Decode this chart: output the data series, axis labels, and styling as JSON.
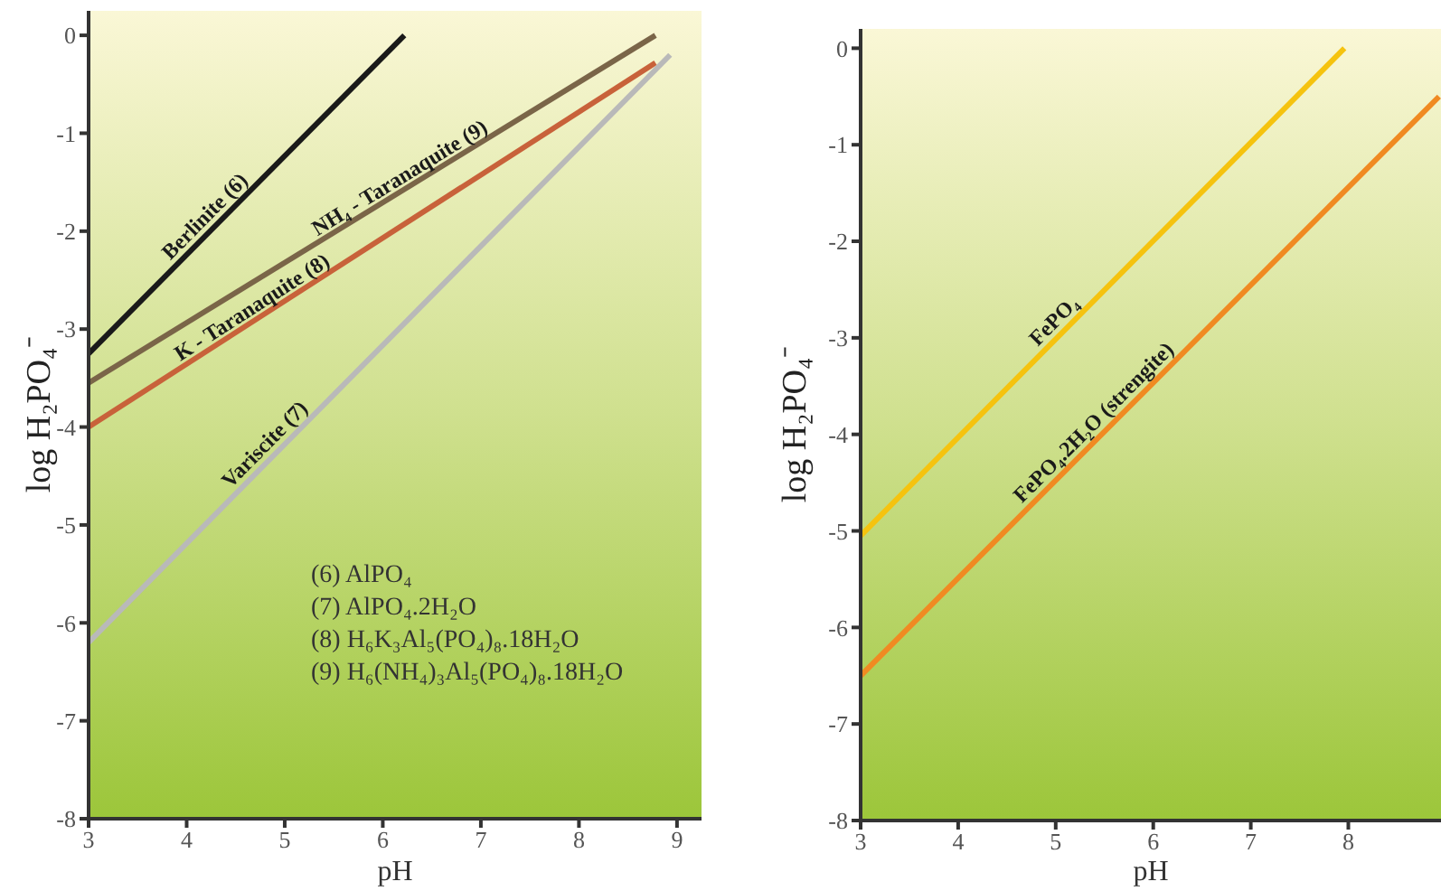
{
  "chart_data": [
    {
      "type": "line",
      "xlabel": "pH",
      "ylabel": "log H₂PO₄⁻",
      "xlim": [
        3,
        9.25
      ],
      "ylim": [
        -8,
        0.25
      ],
      "xticks": [
        3,
        4,
        5,
        6,
        7,
        8,
        9
      ],
      "yticks": [
        -8,
        -7,
        -6,
        -5,
        -4,
        -3,
        -2,
        -1,
        0
      ],
      "marker": "none",
      "line_style": "solid",
      "series": [
        {
          "name": "Berlinite (6)",
          "color": "#1a1a1a",
          "x": [
            3,
            6.22
          ],
          "values": [
            -3.25,
            0
          ]
        },
        {
          "name": "NH₄ - Taranaquite (9)",
          "color": "#7a6548",
          "x": [
            3,
            8.78
          ],
          "values": [
            -3.55,
            0
          ]
        },
        {
          "name": "K - Taranaquite (8)",
          "color": "#c8623a",
          "x": [
            3,
            8.78
          ],
          "values": [
            -4.0,
            -0.28
          ]
        },
        {
          "name": "Variscite (7)",
          "color": "#b9b9b9",
          "x": [
            3,
            8.93
          ],
          "values": [
            -6.2,
            -0.2
          ]
        }
      ],
      "annotations": [
        "(6) AlPO₄",
        "(7) AlPO₄.2H₂O",
        "(8) H₆K₃Al₅(PO₄)₈.18H₂O",
        "(9) H₆(NH₄)₃Al₅(PO₄)₈.18H₂O"
      ]
    },
    {
      "type": "line",
      "xlabel": "pH",
      "ylabel": "log H₂PO₄⁻",
      "xlim": [
        3,
        8.95
      ],
      "ylim": [
        -8,
        0.2
      ],
      "xticks": [
        3,
        4,
        5,
        6,
        7,
        8
      ],
      "yticks": [
        -8,
        -7,
        -6,
        -5,
        -4,
        -3,
        -2,
        -1,
        0
      ],
      "marker": "none",
      "line_style": "solid",
      "series": [
        {
          "name": "FePO₄",
          "color": "#f5c30f",
          "x": [
            3,
            7.96
          ],
          "values": [
            -5.05,
            0
          ]
        },
        {
          "name": "FePO₄.2H₂O (strengite)",
          "color": "#f08a22",
          "x": [
            3,
            8.93
          ],
          "values": [
            -6.5,
            -0.5
          ]
        }
      ]
    }
  ]
}
